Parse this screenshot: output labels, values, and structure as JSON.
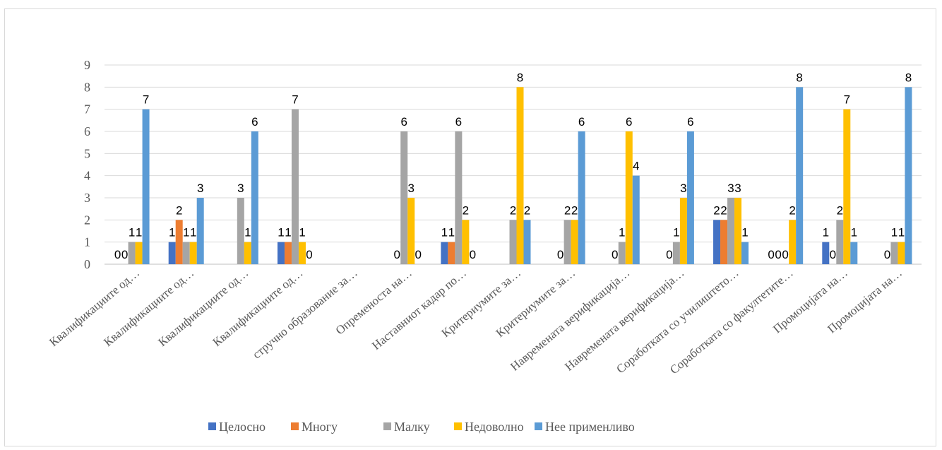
{
  "chart_data": {
    "type": "bar",
    "ylim": [
      0,
      9
    ],
    "yticks": [
      0,
      1,
      2,
      3,
      4,
      5,
      6,
      7,
      8,
      9
    ],
    "grid": true,
    "legend_position": "bottom",
    "categories": [
      "Квалификациите од…",
      "Квалификациите од…",
      "Квалификациите од…",
      "Квалификациите од…",
      "стручно образование за…",
      "Опременоста на…",
      "Наставниот кадар по…",
      "Критериумите за…",
      "Критериумите за…",
      "Навремената верификација…",
      "Навремената верификација…",
      "Соработката со училиштето…",
      "Соработката со факултетите…",
      "Промоцијата на…",
      "Промоцијата на…"
    ],
    "series": [
      {
        "name": "Целосно",
        "color": "#4472C4",
        "values": [
          0,
          1,
          null,
          1,
          null,
          null,
          1,
          null,
          null,
          null,
          null,
          2,
          0,
          1,
          null
        ]
      },
      {
        "name": "Многу",
        "color": "#ED7D31",
        "values": [
          0,
          2,
          null,
          1,
          null,
          0,
          1,
          null,
          0,
          0,
          0,
          2,
          0,
          0,
          0
        ]
      },
      {
        "name": "Малку",
        "color": "#A5A5A5",
        "values": [
          1,
          1,
          3,
          7,
          null,
          6,
          6,
          2,
          2,
          1,
          1,
          3,
          0,
          2,
          1
        ]
      },
      {
        "name": "Недоволно",
        "color": "#FFC000",
        "values": [
          1,
          1,
          1,
          1,
          null,
          3,
          2,
          8,
          2,
          6,
          3,
          3,
          2,
          7,
          1
        ]
      },
      {
        "name": "Нее применливо",
        "color": "#5B9BD5",
        "values": [
          7,
          3,
          6,
          0,
          null,
          0,
          0,
          2,
          6,
          4,
          6,
          1,
          8,
          1,
          8
        ]
      }
    ]
  }
}
